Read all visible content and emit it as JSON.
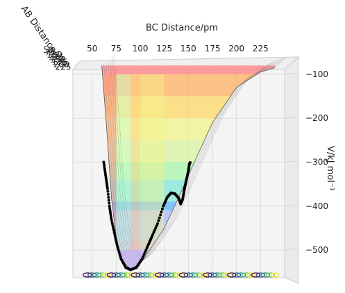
{
  "chart_data": {
    "type": "surface-3d",
    "title": "",
    "xlabel": "BC Distance/pm",
    "ylabel": "AB Distance/pm",
    "zlabel": "V/kJ mol⁻¹",
    "x_ticks": [
      "50",
      "75",
      "100",
      "125",
      "150",
      "175",
      "200",
      "225"
    ],
    "y_ticks": [
      "50",
      "75",
      "100",
      "125",
      "150",
      "175",
      "200",
      "225"
    ],
    "z_ticks": [
      "−100",
      "−200",
      "−300",
      "−400",
      "−500"
    ],
    "z_tick_values": [
      -100,
      -200,
      -300,
      -400,
      -500
    ],
    "xlim": [
      30,
      250
    ],
    "zlim": [
      -560,
      -70
    ],
    "grid": true,
    "surface": {
      "x": [
        60,
        65,
        70,
        75,
        80,
        90,
        100,
        110,
        125,
        140,
        150,
        175,
        200,
        225,
        240
      ],
      "z": [
        -80,
        -220,
        -380,
        -470,
        -520,
        -545,
        -530,
        -500,
        -450,
        -380,
        -330,
        -210,
        -130,
        -95,
        -85
      ]
    },
    "contour_bands": [
      {
        "zmin": -100,
        "zmax": -80,
        "color": "#ff8080"
      },
      {
        "zmin": -150,
        "zmax": -100,
        "color": "#ffb060"
      },
      {
        "zmin": -200,
        "zmax": -150,
        "color": "#ffd966"
      },
      {
        "zmin": -250,
        "zmax": -200,
        "color": "#f3f38a"
      },
      {
        "zmin": -300,
        "zmax": -250,
        "color": "#d9f5a0"
      },
      {
        "zmin": -340,
        "zmax": -300,
        "color": "#a8f5a8"
      },
      {
        "zmin": -390,
        "zmax": -340,
        "color": "#80e8d8"
      },
      {
        "zmin": -410,
        "zmax": -390,
        "color": "#5ab4ff"
      },
      {
        "zmin": -480,
        "zmax": -410,
        "color": "#a8b8ff"
      },
      {
        "zmin": -560,
        "zmax": -480,
        "color": "#c0a8f0"
      }
    ],
    "trajectory": {
      "x": [
        62,
        64,
        66,
        68,
        70,
        73,
        76,
        80,
        85,
        90,
        96,
        102,
        108,
        112,
        118,
        124,
        128,
        132,
        136,
        140,
        142,
        144,
        146,
        148,
        150,
        151,
        152
      ],
      "z": [
        -300,
        -330,
        -360,
        -400,
        -430,
        -460,
        -490,
        -520,
        -540,
        -545,
        -540,
        -520,
        -490,
        -470,
        -440,
        -400,
        -380,
        -370,
        -372,
        -382,
        -395,
        -385,
        -360,
        -340,
        -320,
        -305,
        -300
      ]
    },
    "contour_floor_colors": [
      "#440154",
      "#3b528b",
      "#21918c",
      "#5ec962",
      "#fde725"
    ]
  }
}
